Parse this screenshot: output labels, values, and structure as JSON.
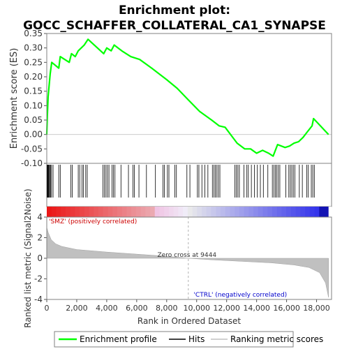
{
  "chart_data": {
    "type": "line",
    "title_lines": [
      "Enrichment plot:",
      "GOCC_SCHAFFER_COLLATERAL_CA1_SYNAPSE"
    ],
    "x_label": "Rank in Ordered Dataset",
    "x_ticks": [
      0,
      2000,
      4000,
      6000,
      8000,
      10000,
      12000,
      14000,
      16000,
      18000
    ],
    "x_tick_labels": [
      "0",
      "2,000",
      "4,000",
      "6,000",
      "8,000",
      "10,000",
      "12,000",
      "14,000",
      "16,000",
      "18,000"
    ],
    "x_range": [
      0,
      19000
    ],
    "es_panel": {
      "y_label": "Enrichment score (ES)",
      "y_range": [
        -0.1,
        0.35
      ],
      "y_ticks": [
        -0.1,
        -0.05,
        0.0,
        0.05,
        0.1,
        0.15,
        0.2,
        0.25,
        0.3,
        0.35
      ],
      "y_tick_labels": [
        "-0.10",
        "-0.05",
        "0.00",
        "0.05",
        "0.10",
        "0.15",
        "0.20",
        "0.25",
        "0.30",
        "0.35"
      ],
      "series": {
        "name": "Enrichment profile",
        "color": "#00ff00",
        "points": [
          [
            0,
            0.0
          ],
          [
            40,
            0.07
          ],
          [
            90,
            0.13
          ],
          [
            160,
            0.17
          ],
          [
            230,
            0.21
          ],
          [
            330,
            0.25
          ],
          [
            800,
            0.23
          ],
          [
            900,
            0.27
          ],
          [
            1500,
            0.25
          ],
          [
            1650,
            0.28
          ],
          [
            1900,
            0.27
          ],
          [
            2100,
            0.29
          ],
          [
            2300,
            0.3
          ],
          [
            2500,
            0.31
          ],
          [
            2750,
            0.33
          ],
          [
            3800,
            0.28
          ],
          [
            4000,
            0.3
          ],
          [
            4300,
            0.29
          ],
          [
            4500,
            0.31
          ],
          [
            5000,
            0.29
          ],
          [
            5600,
            0.27
          ],
          [
            6200,
            0.26
          ],
          [
            7000,
            0.23
          ],
          [
            8000,
            0.19
          ],
          [
            8700,
            0.16
          ],
          [
            9444,
            0.12
          ],
          [
            10200,
            0.08
          ],
          [
            11000,
            0.05
          ],
          [
            11500,
            0.03
          ],
          [
            11900,
            0.025
          ],
          [
            12700,
            -0.03
          ],
          [
            13200,
            -0.05
          ],
          [
            13600,
            -0.05
          ],
          [
            14000,
            -0.065
          ],
          [
            14400,
            -0.055
          ],
          [
            14800,
            -0.065
          ],
          [
            15100,
            -0.075
          ],
          [
            15400,
            -0.035
          ],
          [
            15900,
            -0.045
          ],
          [
            16200,
            -0.04
          ],
          [
            16500,
            -0.03
          ],
          [
            16800,
            -0.025
          ],
          [
            17100,
            -0.01
          ],
          [
            17400,
            0.01
          ],
          [
            17700,
            0.03
          ],
          [
            17800,
            0.055
          ],
          [
            18800,
            0.0
          ]
        ]
      }
    },
    "hits": [
      30,
      60,
      90,
      120,
      150,
      200,
      250,
      320,
      420,
      800,
      900,
      1600,
      1700,
      2100,
      2200,
      2350,
      2450,
      2600,
      2700,
      3750,
      3850,
      3950,
      4050,
      4150,
      4350,
      4450,
      4550,
      4950,
      5450,
      5750,
      5850,
      6150,
      6650,
      7250,
      7750,
      7850,
      8050,
      8150,
      8550,
      8650,
      9350,
      9550,
      10050,
      10150,
      10350,
      10550,
      10750,
      11050,
      11150,
      11250,
      11350,
      11450,
      11550,
      12550,
      12650,
      12750,
      12850,
      13150,
      13350,
      13450,
      13650,
      13850,
      14050,
      14250,
      14450,
      14750,
      15050,
      15150,
      15250,
      15350,
      15450,
      15550,
      15950,
      16150,
      16250,
      16350,
      16450,
      16550,
      16850,
      17050,
      17350,
      17450,
      17650,
      17750,
      17850
    ],
    "ranked_metric": {
      "y_label": "Ranked list metric (Signal2Noise)",
      "y_range": [
        -4,
        4
      ],
      "y_ticks": [
        -4,
        -2,
        0,
        2,
        4
      ],
      "y_tick_labels": [
        "-4",
        "-2",
        "0",
        "2",
        "4"
      ],
      "points": [
        [
          0,
          3.0
        ],
        [
          100,
          2.5
        ],
        [
          300,
          1.8
        ],
        [
          600,
          1.4
        ],
        [
          1000,
          1.15
        ],
        [
          2000,
          0.85
        ],
        [
          4000,
          0.6
        ],
        [
          6000,
          0.4
        ],
        [
          8000,
          0.2
        ],
        [
          9444,
          0.0
        ],
        [
          11000,
          -0.15
        ],
        [
          13000,
          -0.3
        ],
        [
          15000,
          -0.45
        ],
        [
          16500,
          -0.65
        ],
        [
          17500,
          -0.9
        ],
        [
          18200,
          -1.4
        ],
        [
          18600,
          -2.4
        ],
        [
          18800,
          -3.8
        ]
      ],
      "zero_cross_rank": 9444
    },
    "annotations": {
      "zero_cross": "Zero cross at 9444",
      "positive": "'SMZ' (positively correlated)",
      "negative": "'CTRL' (negatively correlated)"
    },
    "legend": [
      "Enrichment profile",
      "Hits",
      "Ranking metric scores"
    ],
    "colors": {
      "profile": "#00ff00",
      "positive_text": "#cc0000",
      "negative_text": "#0000cc",
      "metric_fill": "#c0c0c0",
      "zero_line": "#cccccc"
    }
  }
}
